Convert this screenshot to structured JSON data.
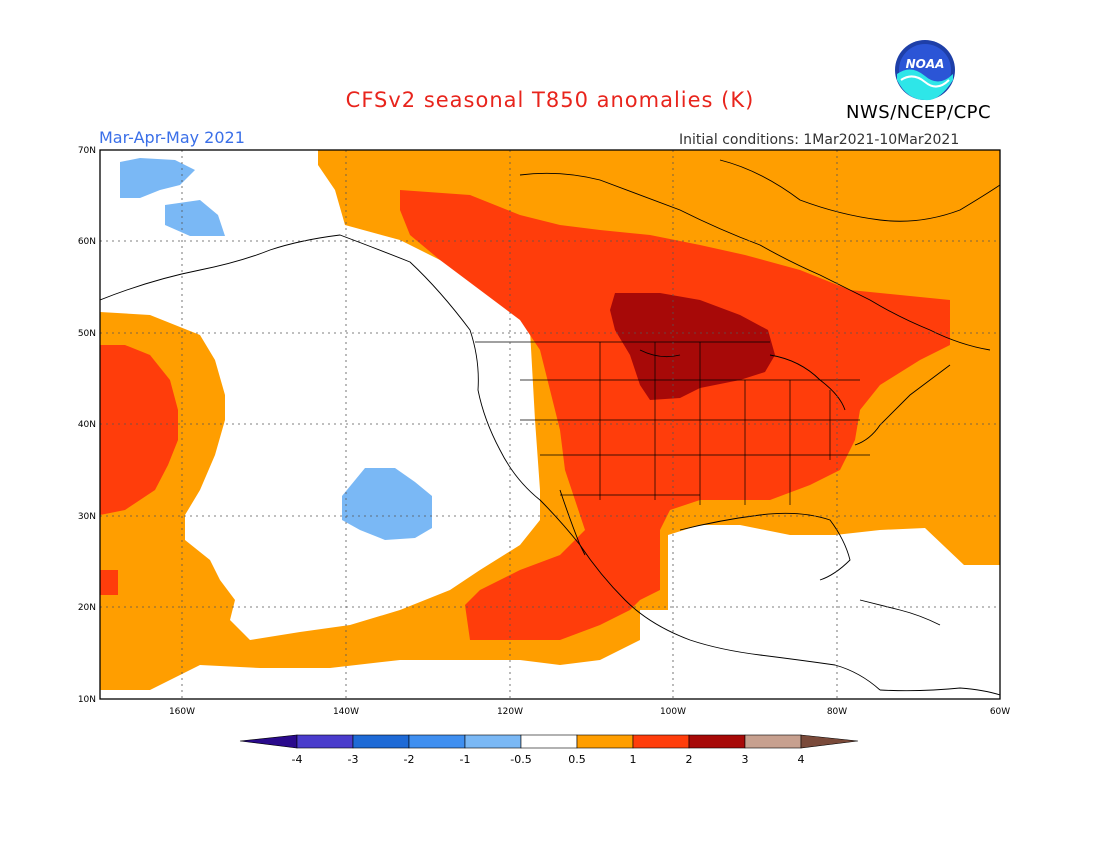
{
  "header": {
    "title": "CFSv2 seasonal T850 anomalies (K)",
    "season": "Mar-Apr-May 2021",
    "initial_conditions": "Initial conditions: 1Mar2021-10Mar2021",
    "agency": "NWS/NCEP/CPC",
    "logo_text": "NOAA"
  },
  "map": {
    "projection": "lat-lon",
    "lon_range": [
      -170,
      -60
    ],
    "lat_range": [
      10,
      70
    ],
    "lat_labels": [
      "70N",
      "60N",
      "50N",
      "40N",
      "30N",
      "20N",
      "10N"
    ],
    "lon_labels": [
      "160W",
      "140W",
      "120W",
      "100W",
      "80W",
      "60W"
    ],
    "grid": "dotted"
  },
  "colorbar": {
    "labels": [
      "-4",
      "-3",
      "-2",
      "-1",
      "-0.5",
      "0.5",
      "1",
      "2",
      "3",
      "4"
    ],
    "colors": [
      "#2a0a8c",
      "#4a3ccc",
      "#1e6ad6",
      "#3f8ff0",
      "#7ab8f5",
      "#ffffff",
      "#ff9e00",
      "#ff3d0b",
      "#a70908",
      "#c7a08f",
      "#7a4a3a"
    ]
  },
  "anomaly_colors": {
    "0.5-1": "#ff9e00",
    "1-2": "#ff3d0b",
    "2-3": "#a70908",
    "-1--0.5": "#7ab8f5"
  }
}
